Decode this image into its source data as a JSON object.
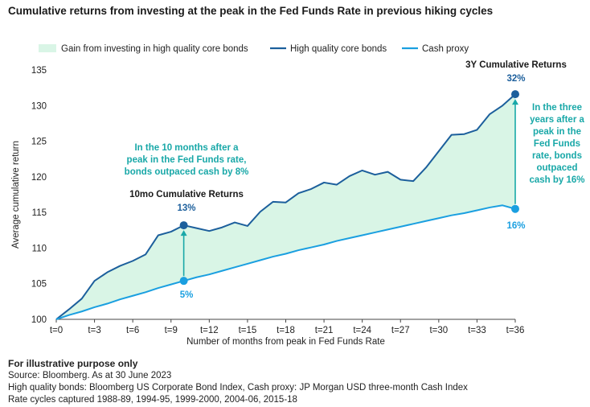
{
  "title": "Cumulative returns from investing at the peak in the Fed Funds Rate in previous hiking cycles",
  "colors": {
    "bonds": "#1c5f9c",
    "cash": "#1a9fe0",
    "gain_fill": "#d9f5e6",
    "annotation_teal": "#19a8a8",
    "text": "#222222"
  },
  "chart_data": {
    "type": "line",
    "xlabel": "Number of months from peak in Fed Funds Rate",
    "ylabel": "Average cumulative return",
    "ylim": [
      100,
      135
    ],
    "xlim": [
      0,
      36
    ],
    "yticks": [
      100,
      105,
      110,
      115,
      120,
      125,
      130,
      135
    ],
    "xticks": [
      {
        "x": 0,
        "label": "t=0"
      },
      {
        "x": 3,
        "label": "t=3"
      },
      {
        "x": 6,
        "label": "t=6"
      },
      {
        "x": 9,
        "label": "t=9"
      },
      {
        "x": 12,
        "label": "t=12"
      },
      {
        "x": 15,
        "label": "t=15"
      },
      {
        "x": 18,
        "label": "t=18"
      },
      {
        "x": 21,
        "label": "t=21"
      },
      {
        "x": 24,
        "label": "t=24"
      },
      {
        "x": 27,
        "label": "t=27"
      },
      {
        "x": 30,
        "label": "t=30"
      },
      {
        "x": 33,
        "label": "t=33"
      },
      {
        "x": 36,
        "label": "t=36"
      }
    ],
    "legend_position": "top",
    "grid": false,
    "x": [
      0,
      1,
      2,
      3,
      4,
      5,
      6,
      7,
      8,
      9,
      10,
      11,
      12,
      13,
      14,
      15,
      16,
      17,
      18,
      19,
      20,
      21,
      22,
      23,
      24,
      25,
      26,
      27,
      28,
      29,
      30,
      31,
      32,
      33,
      34,
      35,
      36
    ],
    "series": [
      {
        "name": "High quality core bonds",
        "values": [
          100,
          101.4,
          102.9,
          105.4,
          106.6,
          107.5,
          108.2,
          109.1,
          111.8,
          112.3,
          113.2,
          112.8,
          112.4,
          112.9,
          113.6,
          113.1,
          115.1,
          116.5,
          116.4,
          117.7,
          118.3,
          119.2,
          118.9,
          120.1,
          120.9,
          120.3,
          120.7,
          119.6,
          119.4,
          121.3,
          123.6,
          125.9,
          126.0,
          126.6,
          128.8,
          130.0,
          131.6
        ]
      },
      {
        "name": "Cash proxy",
        "values": [
          100,
          100.6,
          101.1,
          101.7,
          102.2,
          102.8,
          103.3,
          103.8,
          104.4,
          104.9,
          105.4,
          105.9,
          106.3,
          106.8,
          107.3,
          107.8,
          108.3,
          108.8,
          109.2,
          109.7,
          110.1,
          110.5,
          111.0,
          111.4,
          111.8,
          112.2,
          112.6,
          113.0,
          113.4,
          113.8,
          114.2,
          114.6,
          114.9,
          115.3,
          115.7,
          116.0,
          115.5
        ]
      }
    ],
    "legend": [
      {
        "label": "Gain from investing in high quality core bonds",
        "kind": "area"
      },
      {
        "label": "High quality core bonds",
        "kind": "line",
        "series": 0
      },
      {
        "label": "Cash proxy",
        "kind": "line",
        "series": 1
      }
    ],
    "annotations": {
      "ten_mo_heading": "10mo Cumulative Returns",
      "ten_mo_bond_pct": "13%",
      "ten_mo_cash_pct": "5%",
      "ten_mo_text": [
        "In the 10 months after a",
        "peak in the Fed Funds rate,",
        "bonds outpaced cash by 8%"
      ],
      "three_y_heading": "3Y Cumulative Returns",
      "three_y_bond_pct": "32%",
      "three_y_cash_pct": "16%",
      "three_y_text": [
        "In the three",
        "years after a",
        "peak in the",
        "Fed Funds",
        "rate, bonds",
        "outpaced",
        "cash by 16%"
      ]
    },
    "markers": [
      {
        "x": 10,
        "bond": 113.2,
        "cash": 105.4
      },
      {
        "x": 36,
        "bond": 131.6,
        "cash": 115.5
      }
    ]
  },
  "footer": {
    "note": "For illustrative purpose only",
    "source": "Source: Bloomberg. As at 30 June 2023",
    "definitions": "High quality bonds: Bloomberg US Corporate Bond Index, Cash proxy: JP Morgan USD three-month Cash Index",
    "cycles": "Rate cycles captured 1988-89, 1994-95, 1999-2000, 2004-06, 2015-18"
  }
}
